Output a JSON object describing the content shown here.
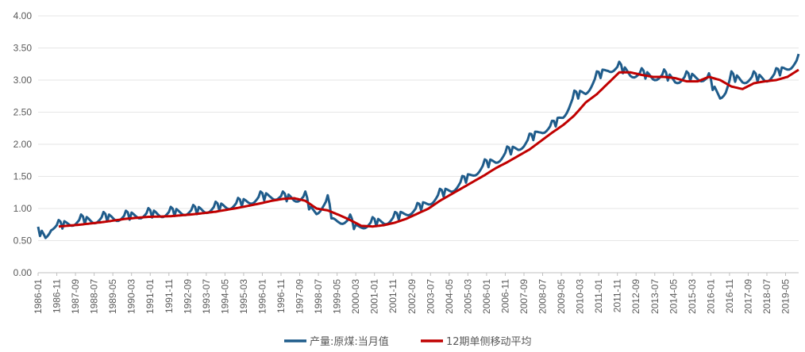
{
  "chart_data": {
    "type": "line",
    "title": "",
    "xlabel": "",
    "ylabel": "",
    "ylim": [
      0,
      4
    ],
    "y_ticks": [
      "0.00",
      "0.50",
      "1.00",
      "1.50",
      "2.00",
      "2.50",
      "3.00",
      "3.50",
      "4.00"
    ],
    "x_tick_labels": [
      "1986-01",
      "1986-11",
      "1987-09",
      "1988-07",
      "1989-05",
      "1990-03",
      "1991-01",
      "1991-11",
      "1992-09",
      "1993-07",
      "1994-05",
      "1995-03",
      "1996-01",
      "1996-11",
      "1997-09",
      "1998-07",
      "1999-05",
      "2000-03",
      "2001-01",
      "2001-11",
      "2002-09",
      "2003-07",
      "2004-05",
      "2005-03",
      "2006-01",
      "2006-11",
      "2007-09",
      "2008-07",
      "2009-05",
      "2010-03",
      "2011-01",
      "2011-11",
      "2012-09",
      "2013-07",
      "2014-05",
      "2015-03",
      "2016-01",
      "2016-11",
      "2017-09",
      "2018-07",
      "2019-05"
    ],
    "x_start": "1986-01",
    "x_end": "2019-12",
    "grid": "horizontal",
    "legend_position": "bottom",
    "series": [
      {
        "name": "产量:原煤:当月值",
        "color": "#1f5c8b",
        "anchors": [
          [
            "1986-01",
            0.66
          ],
          [
            "1986-05",
            0.55
          ],
          [
            "1986-08",
            0.72
          ],
          [
            "1987-01",
            0.74
          ],
          [
            "1987-06",
            0.78
          ],
          [
            "1987-12",
            0.82
          ],
          [
            "1988-06",
            0.82
          ],
          [
            "1988-12",
            0.86
          ],
          [
            "1989-06",
            0.86
          ],
          [
            "1989-12",
            0.88
          ],
          [
            "1990-06",
            0.9
          ],
          [
            "1990-12",
            0.92
          ],
          [
            "1991-06",
            0.92
          ],
          [
            "1991-12",
            0.94
          ],
          [
            "1992-06",
            0.95
          ],
          [
            "1992-12",
            0.97
          ],
          [
            "1993-06",
            0.98
          ],
          [
            "1993-12",
            1.02
          ],
          [
            "1994-06",
            1.04
          ],
          [
            "1994-12",
            1.08
          ],
          [
            "1995-06",
            1.12
          ],
          [
            "1995-12",
            1.18
          ],
          [
            "1996-06",
            1.2
          ],
          [
            "1996-12",
            1.18
          ],
          [
            "1997-06",
            1.16
          ],
          [
            "1997-12",
            1.18
          ],
          [
            "1998-03",
            0.98
          ],
          [
            "1998-06",
            0.95
          ],
          [
            "1998-09",
            1.05
          ],
          [
            "1998-12",
            1.12
          ],
          [
            "1999-03",
            0.8
          ],
          [
            "1999-06",
            0.82
          ],
          [
            "1999-12",
            0.82
          ],
          [
            "2000-03",
            0.7
          ],
          [
            "2000-06",
            0.74
          ],
          [
            "2000-12",
            0.78
          ],
          [
            "2001-06",
            0.8
          ],
          [
            "2001-12",
            0.86
          ],
          [
            "2002-06",
            0.94
          ],
          [
            "2002-12",
            1.0
          ],
          [
            "2003-06",
            1.1
          ],
          [
            "2003-12",
            1.22
          ],
          [
            "2004-06",
            1.3
          ],
          [
            "2004-12",
            1.42
          ],
          [
            "2005-06",
            1.55
          ],
          [
            "2005-12",
            1.68
          ],
          [
            "2006-06",
            1.75
          ],
          [
            "2006-12",
            1.88
          ],
          [
            "2007-06",
            1.95
          ],
          [
            "2007-12",
            2.08
          ],
          [
            "2008-06",
            2.22
          ],
          [
            "2008-12",
            2.28
          ],
          [
            "2009-06",
            2.45
          ],
          [
            "2009-12",
            2.75
          ],
          [
            "2010-06",
            2.82
          ],
          [
            "2010-12",
            3.05
          ],
          [
            "2011-06",
            3.18
          ],
          [
            "2011-12",
            3.2
          ],
          [
            "2012-06",
            3.1
          ],
          [
            "2012-12",
            3.1
          ],
          [
            "2013-06",
            3.05
          ],
          [
            "2013-12",
            3.08
          ],
          [
            "2014-06",
            3.0
          ],
          [
            "2014-12",
            3.05
          ],
          [
            "2015-06",
            3.05
          ],
          [
            "2015-12",
            3.02
          ],
          [
            "2016-03",
            2.85
          ],
          [
            "2016-06",
            2.75
          ],
          [
            "2016-09",
            2.85
          ],
          [
            "2016-12",
            3.05
          ],
          [
            "2017-06",
            3.0
          ],
          [
            "2017-12",
            3.05
          ],
          [
            "2018-06",
            3.02
          ],
          [
            "2018-12",
            3.1
          ],
          [
            "2019-06",
            3.2
          ],
          [
            "2019-12",
            3.32
          ]
        ],
        "seasonal_amplitude": 0.06,
        "feb_drop": 0.12
      },
      {
        "name": "12期单侧移动平均",
        "color": "#c00000",
        "anchors": [
          [
            "1986-12",
            0.72
          ],
          [
            "1987-12",
            0.75
          ],
          [
            "1988-12",
            0.79
          ],
          [
            "1989-12",
            0.84
          ],
          [
            "1990-12",
            0.87
          ],
          [
            "1991-12",
            0.88
          ],
          [
            "1992-12",
            0.91
          ],
          [
            "1993-12",
            0.95
          ],
          [
            "1994-12",
            1.01
          ],
          [
            "1995-12",
            1.08
          ],
          [
            "1996-06",
            1.12
          ],
          [
            "1996-12",
            1.15
          ],
          [
            "1997-06",
            1.16
          ],
          [
            "1997-12",
            1.12
          ],
          [
            "1998-06",
            1.0
          ],
          [
            "1998-12",
            0.97
          ],
          [
            "1999-06",
            0.9
          ],
          [
            "1999-12",
            0.82
          ],
          [
            "2000-06",
            0.73
          ],
          [
            "2000-12",
            0.72
          ],
          [
            "2001-06",
            0.74
          ],
          [
            "2001-12",
            0.78
          ],
          [
            "2002-06",
            0.84
          ],
          [
            "2002-12",
            0.92
          ],
          [
            "2003-06",
            1.0
          ],
          [
            "2003-12",
            1.12
          ],
          [
            "2004-06",
            1.22
          ],
          [
            "2004-12",
            1.32
          ],
          [
            "2005-06",
            1.42
          ],
          [
            "2005-12",
            1.52
          ],
          [
            "2006-06",
            1.63
          ],
          [
            "2006-12",
            1.72
          ],
          [
            "2007-06",
            1.82
          ],
          [
            "2007-12",
            1.92
          ],
          [
            "2008-06",
            2.05
          ],
          [
            "2008-12",
            2.18
          ],
          [
            "2009-06",
            2.3
          ],
          [
            "2009-12",
            2.45
          ],
          [
            "2010-06",
            2.65
          ],
          [
            "2010-12",
            2.78
          ],
          [
            "2011-06",
            2.95
          ],
          [
            "2011-12",
            3.12
          ],
          [
            "2012-06",
            3.12
          ],
          [
            "2012-12",
            3.08
          ],
          [
            "2013-06",
            3.05
          ],
          [
            "2013-12",
            3.05
          ],
          [
            "2014-06",
            3.03
          ],
          [
            "2014-12",
            2.98
          ],
          [
            "2015-06",
            2.98
          ],
          [
            "2015-12",
            3.05
          ],
          [
            "2016-06",
            3.0
          ],
          [
            "2016-12",
            2.9
          ],
          [
            "2017-06",
            2.86
          ],
          [
            "2017-12",
            2.95
          ],
          [
            "2018-06",
            2.98
          ],
          [
            "2018-12",
            3.0
          ],
          [
            "2019-06",
            3.05
          ],
          [
            "2019-12",
            3.16
          ]
        ]
      }
    ]
  }
}
